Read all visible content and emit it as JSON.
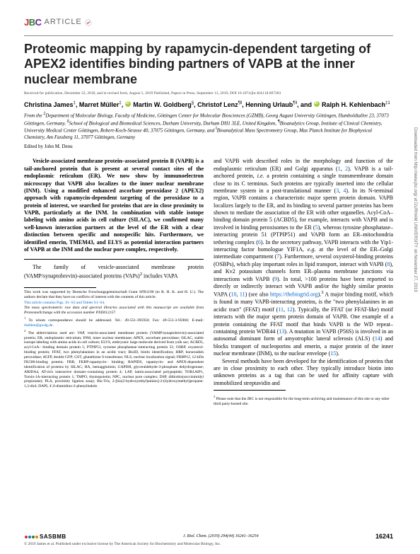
{
  "journal": {
    "logo_letters": [
      "J",
      "B",
      "C"
    ],
    "article_label": "ARTICLE"
  },
  "title": "Proteomic mapping by rapamycin-dependent targeting of APEX2 identifies binding partners of VAPB at the inner nuclear membrane",
  "pub_info": "Received for publication, December 22, 2018, and in revised form, August 5, 2019  Published, Papers in Press, September 13, 2019, DOI 10.1074/jbc.RA118.007283",
  "authors_html": "Christina James<sup>‡</sup>, Marret Müller<sup>‡</sup>, <span class='orcid'></span> Martin W. Goldberg<sup>§</sup>, Christof Lenz<sup>¶‖</sup>, Henning Urlaub<sup>¶‖</sup>, and <span class='orcid'></span> Ralph H. Kehlenbach<sup>‡1</sup>",
  "affiliations": "From the <sup>‡</sup>Department of Molecular Biology, Faculty of Medicine, Göttingen Center for Molecular Biosciences (GZMB), Georg August University Göttingen, Humboldtallee 23, 37073 Göttingen, Germany, <sup>§</sup>School of Biological and Biomedical Sciences, Durham University, Durham DH1 3LE, United Kingdom, <sup>¶</sup>Bioanalytics Group, Institute of Clinical Chemistry, University Medical Center Göttingen, Robert-Koch-Strasse 40, 37075 Göttingen, Germany, and <sup>‖</sup>Bioanalytical Mass Spectrometry Group, Max Planck Institute for Biophysical Chemistry, Am Fassberg 11, 37077 Göttingen, Germany",
  "edited": "Edited by John M. Denu",
  "abstract": "Vesicle-associated membrane protein–associated protein B (VAPB) is a tail-anchored protein that is present at several contact sites of the endoplasmic reticulum (ER). We now show by immunoelectron microscopy that VAPB also localizes to the inner nuclear membrane (INM). Using a modified enhanced ascorbate peroxidase 2 (APEX2) approach with rapamycin-dependent targeting of the peroxidase to a protein of interest, we searched for proteins that are in close proximity to VAPB, particularly at the INM. In combination with stable isotope labeling with amino acids in cell culture (SILAC), we confirmed many well-known interaction partners at the level of the ER with a clear distinction between specific and nonspecific hits. Furthermore, we identified emerin, TMEM43, and ELYS as potential interaction partners of VAPB at the INM and the nuclear pore complex, respectively.",
  "intro": "The family of vesicle-associated membrane protein (VAMP/synaptobrevin)-associated proteins (VAPs)<sup>2</sup> includes VAPA",
  "footnotes": {
    "support": "This work was supported by Deutsche Forschungsgemeinschaft Grant SFB1190 (to R. H. K. and H. U.). The authors declare that they have no conflicts of interest with the contents of this article.",
    "supp": "This article contains Figs. S1–S3 and Tables S1–S4.",
    "data": "The mass spectrometric raw data and spectral libraries associated with this manuscript are available from ProteomeXchange with the accession number PXD012157.",
    "corr": "<sup>1</sup> To whom correspondence should be addressed. Tel.: 49-551-395950; Fax: 49-551-3-95960; E-mail: <span class='link'>rkehlen@gwdg.de</span>.",
    "abbr": "<sup>2</sup> The abbreviations used are: VAP, vesicle-associated membrane protein (VAMP/synaptobrevin)-associated protein; ER, endoplasmic reticulum; INM, inner nuclear membrane; APEX, ascorbate peroxidase; SILAC, stable isotope labeling with amino acids in cell culture; ELYS, embryonic large molecule derived from yolk sac; ACBD5, acyl-CoA– binding domain protein 5; PTPIP51, tyrosine phosphatase–interacting protein 51; OSBP, oxysterol-binding protein; FFAT, two phenylalanines in an acidic tract; BioID, biotin identification; HRP, horseradish peroxidase; dGFP, double GFP; GST, glutathione S-transferase; NLS, nuclear localization signal; FRBP12, 12-kDa FK506-binding protein; FRB, FKBP-rapamycin– binding; RAPIDS, rapamycin- and APEX-dependent identification of proteins by SILAC; HA, hemagglutinin; GAPDH, glyceraldehyde-3-phosphate dehydrogenase; ARIDA4, AT-rich interactive domain–containing protein 4; LAP, lamin-associated polypeptide; TOR1AIP1, Torsin-1A-interacting protein 1; TMPO, thymopoietin; NPC, nuclear pore complex; DSP, dithiobis(succinimidyl propionate); PLA, proximity ligation assay; Bis-Tris, 2-[bis(2-hydroxyethyl)amino]-2-(hydroxymethyl)propane-1,3-diol; DAPI, 4′,6-diamidino-2-phenylindole."
  },
  "body_right": "and VAPB with described roles in the morphology and function of the endoplasmic reticulum (ER) and Golgi apparatus (<span class='ref-link'>1</span>, <span class='ref-link'>2</span>). VAPB is a tail-anchored protein, <i>i.e.</i> a protein containing a single transmembrane domain close to its C terminus. Such proteins are typically inserted into the cellular membrane system in a post-translational manner (<span class='ref-link'>3</span>, <span class='ref-link'>4</span>). In its N-terminal region, VAPB contains a characteristic major sperm protein domain. VAPB localizes largely to the ER, and its binding to several partner proteins has been shown to mediate the association of the ER with other organelles. Acyl-CoA– binding domain protein 5 (ACBD5), for example, interacts with VAPB and is involved in binding peroxisomes to the ER (<span class='ref-link'>5</span>), whereas tyrosine phosphatase–interacting protein 51 (PTPIP51) and VAPB form an ER–mitochondria tethering complex (<span class='ref-link'>6</span>). In the secretory pathway, VAPB interacts with the Yip1-interacting factor homologue YIF1A, <i>e.g.</i> at the level of the ER–Golgi intermediate compartment (<span class='ref-link'>7</span>). Furthermore, several oxysterol-binding proteins (OSBPs), which play important roles in lipid transport, interact with VAPB (<span class='ref-link'>8</span>), and Kv2 potassium channels form ER–plasma membrane junctions via interactions with VAPB (<span class='ref-link'>9</span>). In total, >100 proteins have been reported to directly or indirectly interact with VAPB and/or the highly similar protein VAPA (<span class='ref-link'>10</span>, <span class='ref-link'>11</span>) (see also <span class='ref-link'>https://thebiogrid.org</span>).<sup>3</sup> A major binding motif, which is found in many VAPB-interacting proteins, is the \"two phenylalanines in an acidic tract\" (FFAT) motif (<span class='ref-link'>11</span>, <span class='ref-link'>12</span>). Typically, the FFAT (or FFAT-like) motif interacts with the major sperm protein domain of VAPB. One example of a protein containing the FFAT motif that binds VAPB is the WD repeat– containing protein WDR44 (<span class='ref-link'>13</span>). A mutation in VAPB (P56S) is involved in an autosomal dominant form of amyotrophic lateral sclerosis (ALS) (<span class='ref-link'>14</span>) and blocks transport of nucleoporins and emerin, a major protein of the inner nuclear membrane (INM), to the nuclear envelope (<span class='ref-link'>15</span>).",
  "body_right_p2": "Several methods have been developed for the identification of proteins that are in close proximity to each other. They typically introduce biotin into unknown proteins as a tag that can be used for affinity capture with immobilized streptavidin and",
  "right_footnote": "<sup>3</sup> Please note that the JBC is not responsible for the long-term archiving and maintenance of this site or any other third party-hosted site.",
  "footer": {
    "asbmb": "SASBMB",
    "journal_line": "J. Biol. Chem. (2019) 294(44) 16241–16254",
    "page_num": "16241",
    "copyright": "© 2019 James et al. Published under exclusive license by The American Society for Biochemistry and Molecular Biology, Inc."
  },
  "sidebar": "Downloaded from http://www.jbc.org/ at DURHAM UNIVERSITY on November 27, 2019"
}
